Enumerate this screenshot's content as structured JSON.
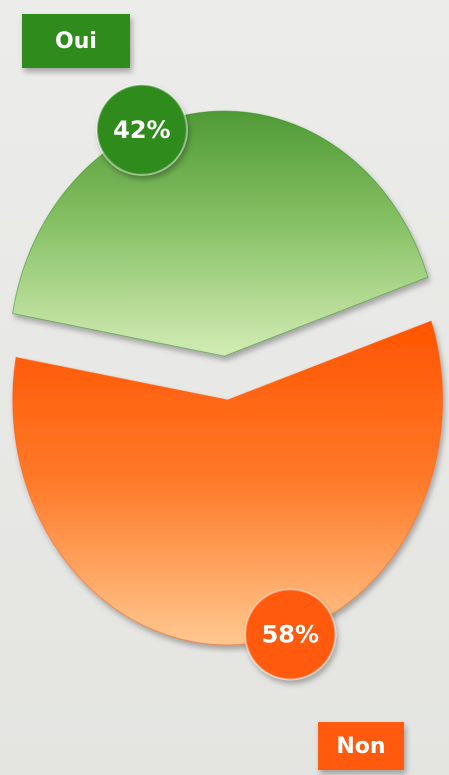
{
  "chart_data": {
    "type": "pie",
    "categories": [
      "Oui",
      "Non"
    ],
    "values": [
      42,
      58
    ],
    "value_labels": [
      "42%",
      "58%"
    ],
    "colors": [
      "#2e8b1e",
      "#ff5a10"
    ]
  }
}
